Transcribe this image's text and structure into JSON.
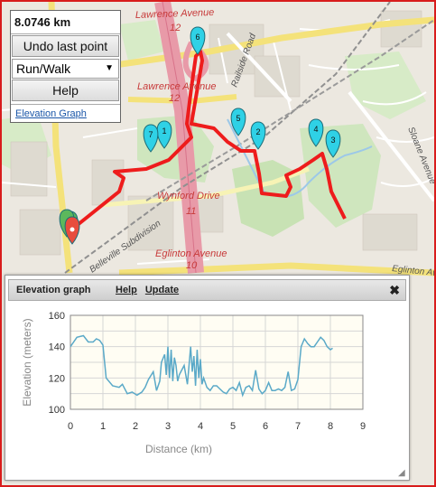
{
  "panel": {
    "distance": "8.0746 km",
    "undo_label": "Undo last point",
    "activity": "Run/Walk",
    "help_label": "Help",
    "elevation_link": "Elevation Graph"
  },
  "map": {
    "labels": {
      "lawrence_top": "Lawrence Avenue",
      "route12_top": "12",
      "lawrence_mid": "Lawrence Avenue",
      "route12_mid": "12",
      "railside": "Railside Road",
      "sloane": "Sloane Avenue",
      "wynford": "Wynford Drive",
      "route11": "11",
      "belleville": "Belleville Subdivision",
      "eglinton_mid": "Eglinton Avenue",
      "route10": "10",
      "eglinton_right": "Eglinton Avenue"
    },
    "markers": [
      "1",
      "2",
      "3",
      "4",
      "5",
      "6",
      "7"
    ],
    "colors": {
      "route": "#ee1c1c",
      "marker": "#2fd1e6",
      "start_marker": "#5cb85c",
      "end_marker": "#e84c3d"
    }
  },
  "elevation": {
    "title": "Elevation graph",
    "help": "Help",
    "update": "Update",
    "close": "✖"
  },
  "chart_data": {
    "type": "line",
    "title": "",
    "xlabel": "Distance (km)",
    "ylabel": "Elevation (meters)",
    "xlim": [
      0,
      9
    ],
    "ylim": [
      100,
      160
    ],
    "xticks": [
      "0",
      "1",
      "2",
      "3",
      "4",
      "5",
      "6",
      "7",
      "8",
      "9"
    ],
    "yticks": [
      "100",
      "120",
      "140",
      "160"
    ],
    "grid": true,
    "line_color": "#5aa9c8",
    "x": [
      0,
      0.2,
      0.4,
      0.55,
      0.7,
      0.8,
      0.9,
      1.0,
      1.1,
      1.3,
      1.5,
      1.6,
      1.75,
      1.9,
      2.05,
      2.2,
      2.3,
      2.4,
      2.55,
      2.65,
      2.75,
      2.8,
      2.9,
      2.95,
      3.0,
      3.05,
      3.1,
      3.15,
      3.2,
      3.25,
      3.3,
      3.35,
      3.4,
      3.5,
      3.6,
      3.7,
      3.75,
      3.8,
      3.85,
      3.9,
      3.95,
      4.0,
      4.05,
      4.1,
      4.2,
      4.3,
      4.4,
      4.5,
      4.6,
      4.7,
      4.8,
      4.9,
      5.0,
      5.1,
      5.2,
      5.3,
      5.4,
      5.5,
      5.6,
      5.7,
      5.8,
      5.9,
      6.0,
      6.1,
      6.2,
      6.3,
      6.4,
      6.5,
      6.6,
      6.7,
      6.8,
      6.9,
      7.0,
      7.1,
      7.2,
      7.3,
      7.4,
      7.5,
      7.6,
      7.7,
      7.8,
      7.9,
      8.0,
      8.07
    ],
    "y": [
      140,
      146,
      147,
      143,
      143,
      145,
      144,
      141,
      120,
      115,
      114,
      116,
      110,
      111,
      109,
      111,
      114,
      119,
      124,
      112,
      118,
      130,
      135,
      122,
      140,
      120,
      138,
      118,
      133,
      128,
      118,
      122,
      124,
      128,
      116,
      140,
      124,
      134,
      115,
      138,
      120,
      132,
      116,
      120,
      114,
      112,
      115,
      115,
      113,
      111,
      110,
      113,
      114,
      112,
      117,
      109,
      114,
      115,
      112,
      125,
      113,
      110,
      112,
      117,
      112,
      112,
      113,
      112,
      114,
      124,
      112,
      113,
      119,
      140,
      145,
      142,
      140,
      140,
      143,
      146,
      144,
      140,
      138,
      139
    ]
  }
}
